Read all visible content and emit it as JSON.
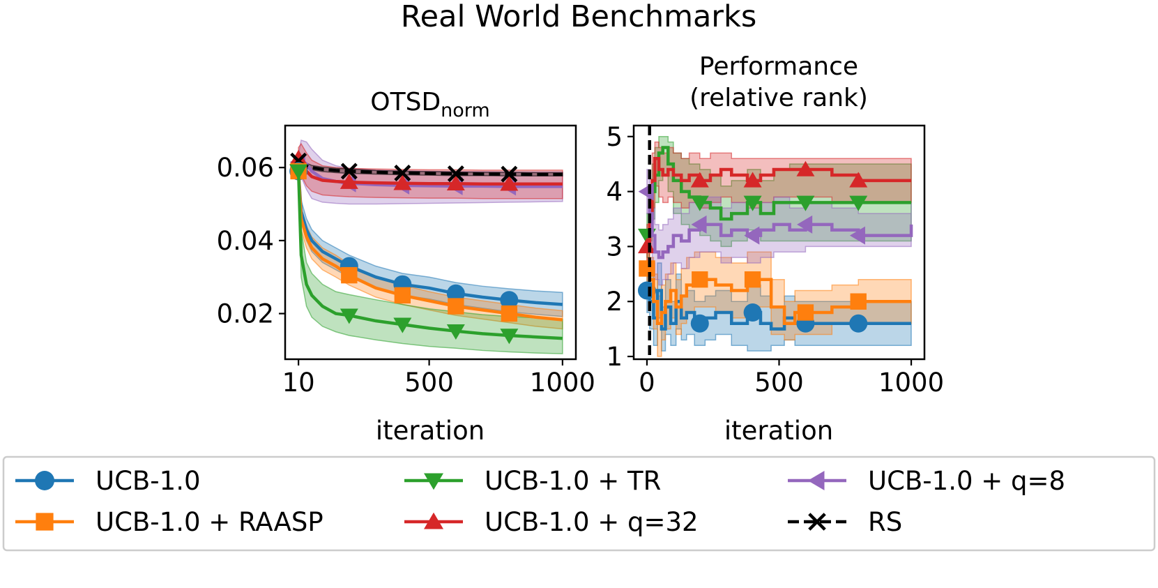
{
  "title": "Real World Benchmarks",
  "colors": {
    "ucb": "#1f77b4",
    "raasp": "#ff7f0e",
    "tr": "#2ca02c",
    "q32": "#d62728",
    "q8": "#9467bd",
    "rs": "#000000"
  },
  "legend": {
    "items": [
      {
        "key": "ucb",
        "label": "UCB-1.0",
        "marker": "circle",
        "dashed": false
      },
      {
        "key": "tr",
        "label": "UCB-1.0 + TR",
        "marker": "triangle-down",
        "dashed": false
      },
      {
        "key": "q8",
        "label": "UCB-1.0 + q=8",
        "marker": "triangle-left",
        "dashed": false
      },
      {
        "key": "raasp",
        "label": "UCB-1.0 + RAASP",
        "marker": "square",
        "dashed": false
      },
      {
        "key": "q32",
        "label": "UCB-1.0 + q=32",
        "marker": "triangle-up",
        "dashed": false
      },
      {
        "key": "rs",
        "label": "RS",
        "marker": "x",
        "dashed": true
      }
    ]
  },
  "chart_data": [
    {
      "type": "line",
      "title": "OTSD",
      "title_sub": "norm",
      "xlabel": "iteration",
      "ylabel": "",
      "xlim": [
        -40,
        1050
      ],
      "ylim": [
        0.0075,
        0.0715
      ],
      "xticks": [
        10,
        500,
        1000
      ],
      "xtick_labels": [
        "10",
        "500",
        "1000"
      ],
      "yticks": [
        0.02,
        0.04,
        0.06
      ],
      "ytick_labels": [
        "0.02",
        "0.04",
        "0.06"
      ],
      "marker_x": [
        10,
        200,
        400,
        600,
        800
      ],
      "series": [
        {
          "key": "ucb",
          "name": "UCB-1.0",
          "x": [
            10,
            20,
            40,
            60,
            100,
            150,
            200,
            300,
            400,
            500,
            600,
            700,
            800,
            900,
            1000
          ],
          "y": [
            0.059,
            0.048,
            0.043,
            0.04,
            0.037,
            0.035,
            0.033,
            0.03,
            0.028,
            0.027,
            0.0255,
            0.0245,
            0.0237,
            0.023,
            0.0225
          ],
          "lo": [
            0.059,
            0.045,
            0.04,
            0.037,
            0.034,
            0.032,
            0.03,
            0.027,
            0.025,
            0.024,
            0.0225,
            0.0215,
            0.0205,
            0.0198,
            0.0192
          ],
          "hi": [
            0.059,
            0.051,
            0.046,
            0.043,
            0.04,
            0.038,
            0.036,
            0.033,
            0.031,
            0.03,
            0.0285,
            0.0275,
            0.0268,
            0.0262,
            0.0258
          ]
        },
        {
          "key": "raasp",
          "name": "UCB-1.0 + RAASP",
          "x": [
            10,
            20,
            40,
            60,
            100,
            150,
            200,
            300,
            400,
            500,
            600,
            700,
            800,
            900,
            1000
          ],
          "y": [
            0.059,
            0.046,
            0.041,
            0.038,
            0.035,
            0.033,
            0.0305,
            0.027,
            0.025,
            0.0235,
            0.022,
            0.021,
            0.02,
            0.019,
            0.0183
          ],
          "lo": [
            0.059,
            0.043,
            0.038,
            0.035,
            0.032,
            0.03,
            0.0278,
            0.0245,
            0.0225,
            0.021,
            0.0195,
            0.0185,
            0.0175,
            0.0165,
            0.0158
          ],
          "hi": [
            0.059,
            0.049,
            0.044,
            0.041,
            0.038,
            0.036,
            0.0335,
            0.0298,
            0.0278,
            0.026,
            0.0245,
            0.0235,
            0.0225,
            0.0215,
            0.0208
          ]
        },
        {
          "key": "tr",
          "name": "UCB-1.0 + TR",
          "x": [
            10,
            20,
            40,
            60,
            100,
            150,
            200,
            300,
            400,
            500,
            600,
            700,
            800,
            900,
            1000
          ],
          "y": [
            0.059,
            0.036,
            0.028,
            0.025,
            0.022,
            0.02,
            0.0195,
            0.018,
            0.017,
            0.016,
            0.0152,
            0.0145,
            0.014,
            0.0136,
            0.0132
          ],
          "lo": [
            0.059,
            0.03,
            0.022,
            0.019,
            0.0165,
            0.015,
            0.014,
            0.0128,
            0.0118,
            0.011,
            0.0105,
            0.0099,
            0.0095,
            0.0092,
            0.009
          ],
          "hi": [
            0.059,
            0.043,
            0.034,
            0.031,
            0.028,
            0.026,
            0.0252,
            0.0238,
            0.0225,
            0.0213,
            0.0205,
            0.0197,
            0.0192,
            0.0188,
            0.0185
          ]
        },
        {
          "key": "q32",
          "name": "UCB-1.0 + q=32",
          "x": [
            10,
            20,
            40,
            60,
            100,
            150,
            200,
            300,
            400,
            500,
            600,
            700,
            800,
            900,
            1000
          ],
          "y": [
            0.0625,
            0.061,
            0.059,
            0.0575,
            0.0565,
            0.0562,
            0.056,
            0.0558,
            0.0557,
            0.0556,
            0.0556,
            0.0555,
            0.0555,
            0.0555,
            0.0555
          ],
          "lo": [
            0.0605,
            0.058,
            0.055,
            0.0535,
            0.0525,
            0.0522,
            0.052,
            0.0518,
            0.0517,
            0.0516,
            0.0516,
            0.0515,
            0.0515,
            0.0515,
            0.0515
          ],
          "hi": [
            0.0655,
            0.0665,
            0.064,
            0.062,
            0.0605,
            0.06,
            0.0598,
            0.0596,
            0.0595,
            0.0594,
            0.0594,
            0.0593,
            0.0593,
            0.0593,
            0.0593
          ]
        },
        {
          "key": "q8",
          "name": "UCB-1.0 + q=8",
          "x": [
            10,
            20,
            40,
            60,
            100,
            150,
            200,
            300,
            400,
            500,
            600,
            700,
            800,
            900,
            1000
          ],
          "y": [
            0.0615,
            0.062,
            0.061,
            0.059,
            0.057,
            0.0562,
            0.0557,
            0.0553,
            0.0551,
            0.055,
            0.0549,
            0.0549,
            0.0548,
            0.0548,
            0.0548
          ],
          "lo": [
            0.0595,
            0.0575,
            0.054,
            0.0515,
            0.0505,
            0.0502,
            0.05,
            0.05,
            0.0501,
            0.0502,
            0.0503,
            0.0504,
            0.0505,
            0.0506,
            0.0507
          ],
          "hi": [
            0.0635,
            0.0675,
            0.067,
            0.065,
            0.062,
            0.0605,
            0.0598,
            0.0593,
            0.0591,
            0.059,
            0.0589,
            0.0589,
            0.0588,
            0.0588,
            0.0588
          ]
        },
        {
          "key": "rs",
          "name": "RS",
          "x": [
            10,
            20,
            40,
            60,
            100,
            150,
            200,
            300,
            400,
            500,
            600,
            700,
            800,
            900,
            1000
          ],
          "y": [
            0.0618,
            0.0612,
            0.0605,
            0.06,
            0.0595,
            0.0592,
            0.059,
            0.0587,
            0.0585,
            0.0584,
            0.0583,
            0.0582,
            0.0582,
            0.0581,
            0.0581
          ],
          "lo": [
            0.061,
            0.0605,
            0.0598,
            0.0594,
            0.0589,
            0.0586,
            0.0584,
            0.0582,
            0.058,
            0.0579,
            0.0578,
            0.0578,
            0.0577,
            0.0577,
            0.0577
          ],
          "hi": [
            0.0626,
            0.0619,
            0.0612,
            0.0606,
            0.0601,
            0.0598,
            0.0596,
            0.0592,
            0.059,
            0.0589,
            0.0588,
            0.0587,
            0.0587,
            0.0586,
            0.0586
          ]
        }
      ]
    },
    {
      "type": "line",
      "title_lines": [
        "Performance",
        "(relative rank)"
      ],
      "xlabel": "iteration",
      "ylabel": "",
      "xlim": [
        -50,
        1050
      ],
      "ylim": [
        0.95,
        5.2
      ],
      "xticks": [
        0,
        500,
        1000
      ],
      "xtick_labels": [
        "0",
        "500",
        "1000"
      ],
      "yticks": [
        1,
        2,
        3,
        4,
        5
      ],
      "ytick_labels": [
        "1",
        "2",
        "3",
        "4",
        "5"
      ],
      "vline_x": 10,
      "marker_x": [
        0,
        200,
        400,
        600,
        800
      ],
      "series": [
        {
          "key": "ucb",
          "name": "UCB-1.0",
          "x": [
            0,
            10,
            25,
            40,
            55,
            70,
            90,
            110,
            130,
            150,
            180,
            220,
            260,
            320,
            380,
            430,
            470,
            520,
            560,
            600,
            700,
            800,
            1000
          ],
          "y": [
            2.2,
            2.0,
            1.7,
            2.2,
            1.5,
            1.9,
            1.6,
            2.0,
            1.7,
            1.8,
            1.6,
            1.7,
            1.8,
            1.6,
            1.8,
            1.6,
            1.5,
            1.7,
            1.6,
            1.6,
            1.6,
            1.6,
            1.6
          ],
          "lo": [
            1.8,
            1.5,
            1.2,
            1.7,
            1.1,
            1.4,
            1.2,
            1.5,
            1.3,
            1.4,
            1.2,
            1.3,
            1.4,
            1.2,
            1.1,
            1.1,
            1.2,
            1.3,
            1.2,
            1.2,
            1.2,
            1.2,
            1.2
          ],
          "hi": [
            2.6,
            2.5,
            2.2,
            2.7,
            1.9,
            2.4,
            2.0,
            2.5,
            2.1,
            2.2,
            2.0,
            2.1,
            2.2,
            2.0,
            2.3,
            2.1,
            1.9,
            2.1,
            2.0,
            2.0,
            2.0,
            2.0,
            2.0
          ]
        },
        {
          "key": "raasp",
          "name": "UCB-1.0 + RAASP",
          "x": [
            0,
            10,
            25,
            40,
            55,
            70,
            90,
            110,
            130,
            150,
            180,
            220,
            260,
            320,
            380,
            430,
            470,
            520,
            560,
            600,
            700,
            800,
            1000
          ],
          "y": [
            2.6,
            2.4,
            2.0,
            1.6,
            1.8,
            2.0,
            2.2,
            1.9,
            2.1,
            2.3,
            2.4,
            2.4,
            2.3,
            2.2,
            2.4,
            2.4,
            1.9,
            1.6,
            1.8,
            1.8,
            1.9,
            2.0,
            2.0
          ],
          "lo": [
            2.2,
            2.0,
            1.5,
            1.0,
            1.3,
            1.5,
            1.7,
            1.4,
            1.6,
            1.8,
            1.9,
            1.9,
            1.8,
            1.7,
            1.9,
            1.9,
            1.4,
            1.3,
            1.4,
            1.4,
            1.6,
            1.6,
            1.6
          ],
          "hi": [
            3.0,
            2.8,
            2.5,
            2.1,
            2.3,
            2.5,
            2.7,
            2.4,
            2.6,
            2.8,
            2.9,
            2.9,
            2.8,
            2.7,
            2.9,
            2.9,
            2.4,
            2.0,
            2.2,
            2.2,
            2.3,
            2.4,
            2.4
          ]
        },
        {
          "key": "tr",
          "name": "UCB-1.0 + TR",
          "x": [
            0,
            10,
            20,
            30,
            45,
            60,
            80,
            100,
            130,
            160,
            200,
            240,
            280,
            320,
            380,
            430,
            480,
            540,
            600,
            700,
            800,
            1000
          ],
          "y": [
            3.2,
            3.6,
            4.0,
            4.3,
            4.7,
            4.8,
            4.5,
            4.2,
            4.0,
            3.9,
            3.8,
            3.7,
            3.5,
            3.6,
            3.8,
            3.6,
            3.8,
            3.8,
            3.8,
            3.8,
            3.8,
            3.8
          ],
          "lo": [
            2.8,
            3.1,
            3.5,
            3.8,
            4.2,
            4.3,
            4.0,
            3.6,
            3.4,
            3.3,
            3.2,
            3.1,
            3.0,
            3.1,
            3.3,
            3.1,
            3.1,
            3.1,
            3.1,
            3.1,
            3.1,
            3.1
          ],
          "hi": [
            3.6,
            4.1,
            4.5,
            4.8,
            5.0,
            5.0,
            4.9,
            4.7,
            4.6,
            4.5,
            4.4,
            4.3,
            4.1,
            4.2,
            4.4,
            4.2,
            4.4,
            4.5,
            4.5,
            4.5,
            4.5,
            4.5
          ]
        },
        {
          "key": "q32",
          "name": "UCB-1.0 + q=32",
          "x": [
            0,
            10,
            20,
            30,
            45,
            60,
            80,
            100,
            130,
            160,
            200,
            240,
            280,
            320,
            380,
            430,
            480,
            540,
            600,
            700,
            800,
            1000
          ],
          "y": [
            3.0,
            3.5,
            4.2,
            4.6,
            4.4,
            4.3,
            4.4,
            4.3,
            4.2,
            4.3,
            4.2,
            4.3,
            4.4,
            4.3,
            4.2,
            4.3,
            4.4,
            4.4,
            4.4,
            4.3,
            4.2,
            4.2
          ],
          "lo": [
            2.6,
            3.0,
            3.7,
            4.1,
            3.9,
            3.8,
            3.9,
            3.8,
            3.7,
            3.8,
            3.7,
            3.8,
            3.9,
            3.8,
            3.7,
            3.8,
            3.9,
            3.9,
            3.9,
            3.8,
            3.8,
            3.8
          ],
          "hi": [
            3.4,
            4.0,
            4.7,
            4.9,
            4.8,
            4.7,
            4.8,
            4.7,
            4.6,
            4.7,
            4.6,
            4.7,
            4.7,
            4.6,
            4.6,
            4.6,
            4.6,
            4.6,
            4.6,
            4.6,
            4.6,
            4.6
          ]
        },
        {
          "key": "q8",
          "name": "UCB-1.0 + q=8",
          "x": [
            0,
            10,
            20,
            30,
            45,
            60,
            80,
            100,
            130,
            160,
            200,
            240,
            280,
            320,
            380,
            430,
            480,
            540,
            600,
            700,
            800,
            1000
          ],
          "y": [
            4.0,
            3.6,
            3.2,
            2.9,
            2.8,
            2.9,
            3.0,
            3.2,
            3.1,
            3.3,
            3.4,
            3.4,
            3.2,
            3.3,
            3.2,
            3.3,
            3.4,
            3.3,
            3.4,
            3.3,
            3.2,
            3.4
          ],
          "lo": [
            3.6,
            3.1,
            2.7,
            2.4,
            2.3,
            2.4,
            2.5,
            2.7,
            2.6,
            2.8,
            2.9,
            2.9,
            2.7,
            2.8,
            2.7,
            2.8,
            2.9,
            2.9,
            3.0,
            3.0,
            3.0,
            3.0
          ],
          "hi": [
            4.4,
            4.1,
            3.7,
            3.4,
            3.3,
            3.4,
            3.5,
            3.7,
            3.6,
            3.8,
            3.9,
            3.9,
            3.7,
            3.8,
            3.7,
            3.8,
            3.9,
            3.7,
            3.8,
            3.7,
            3.6,
            3.8
          ]
        }
      ]
    }
  ]
}
